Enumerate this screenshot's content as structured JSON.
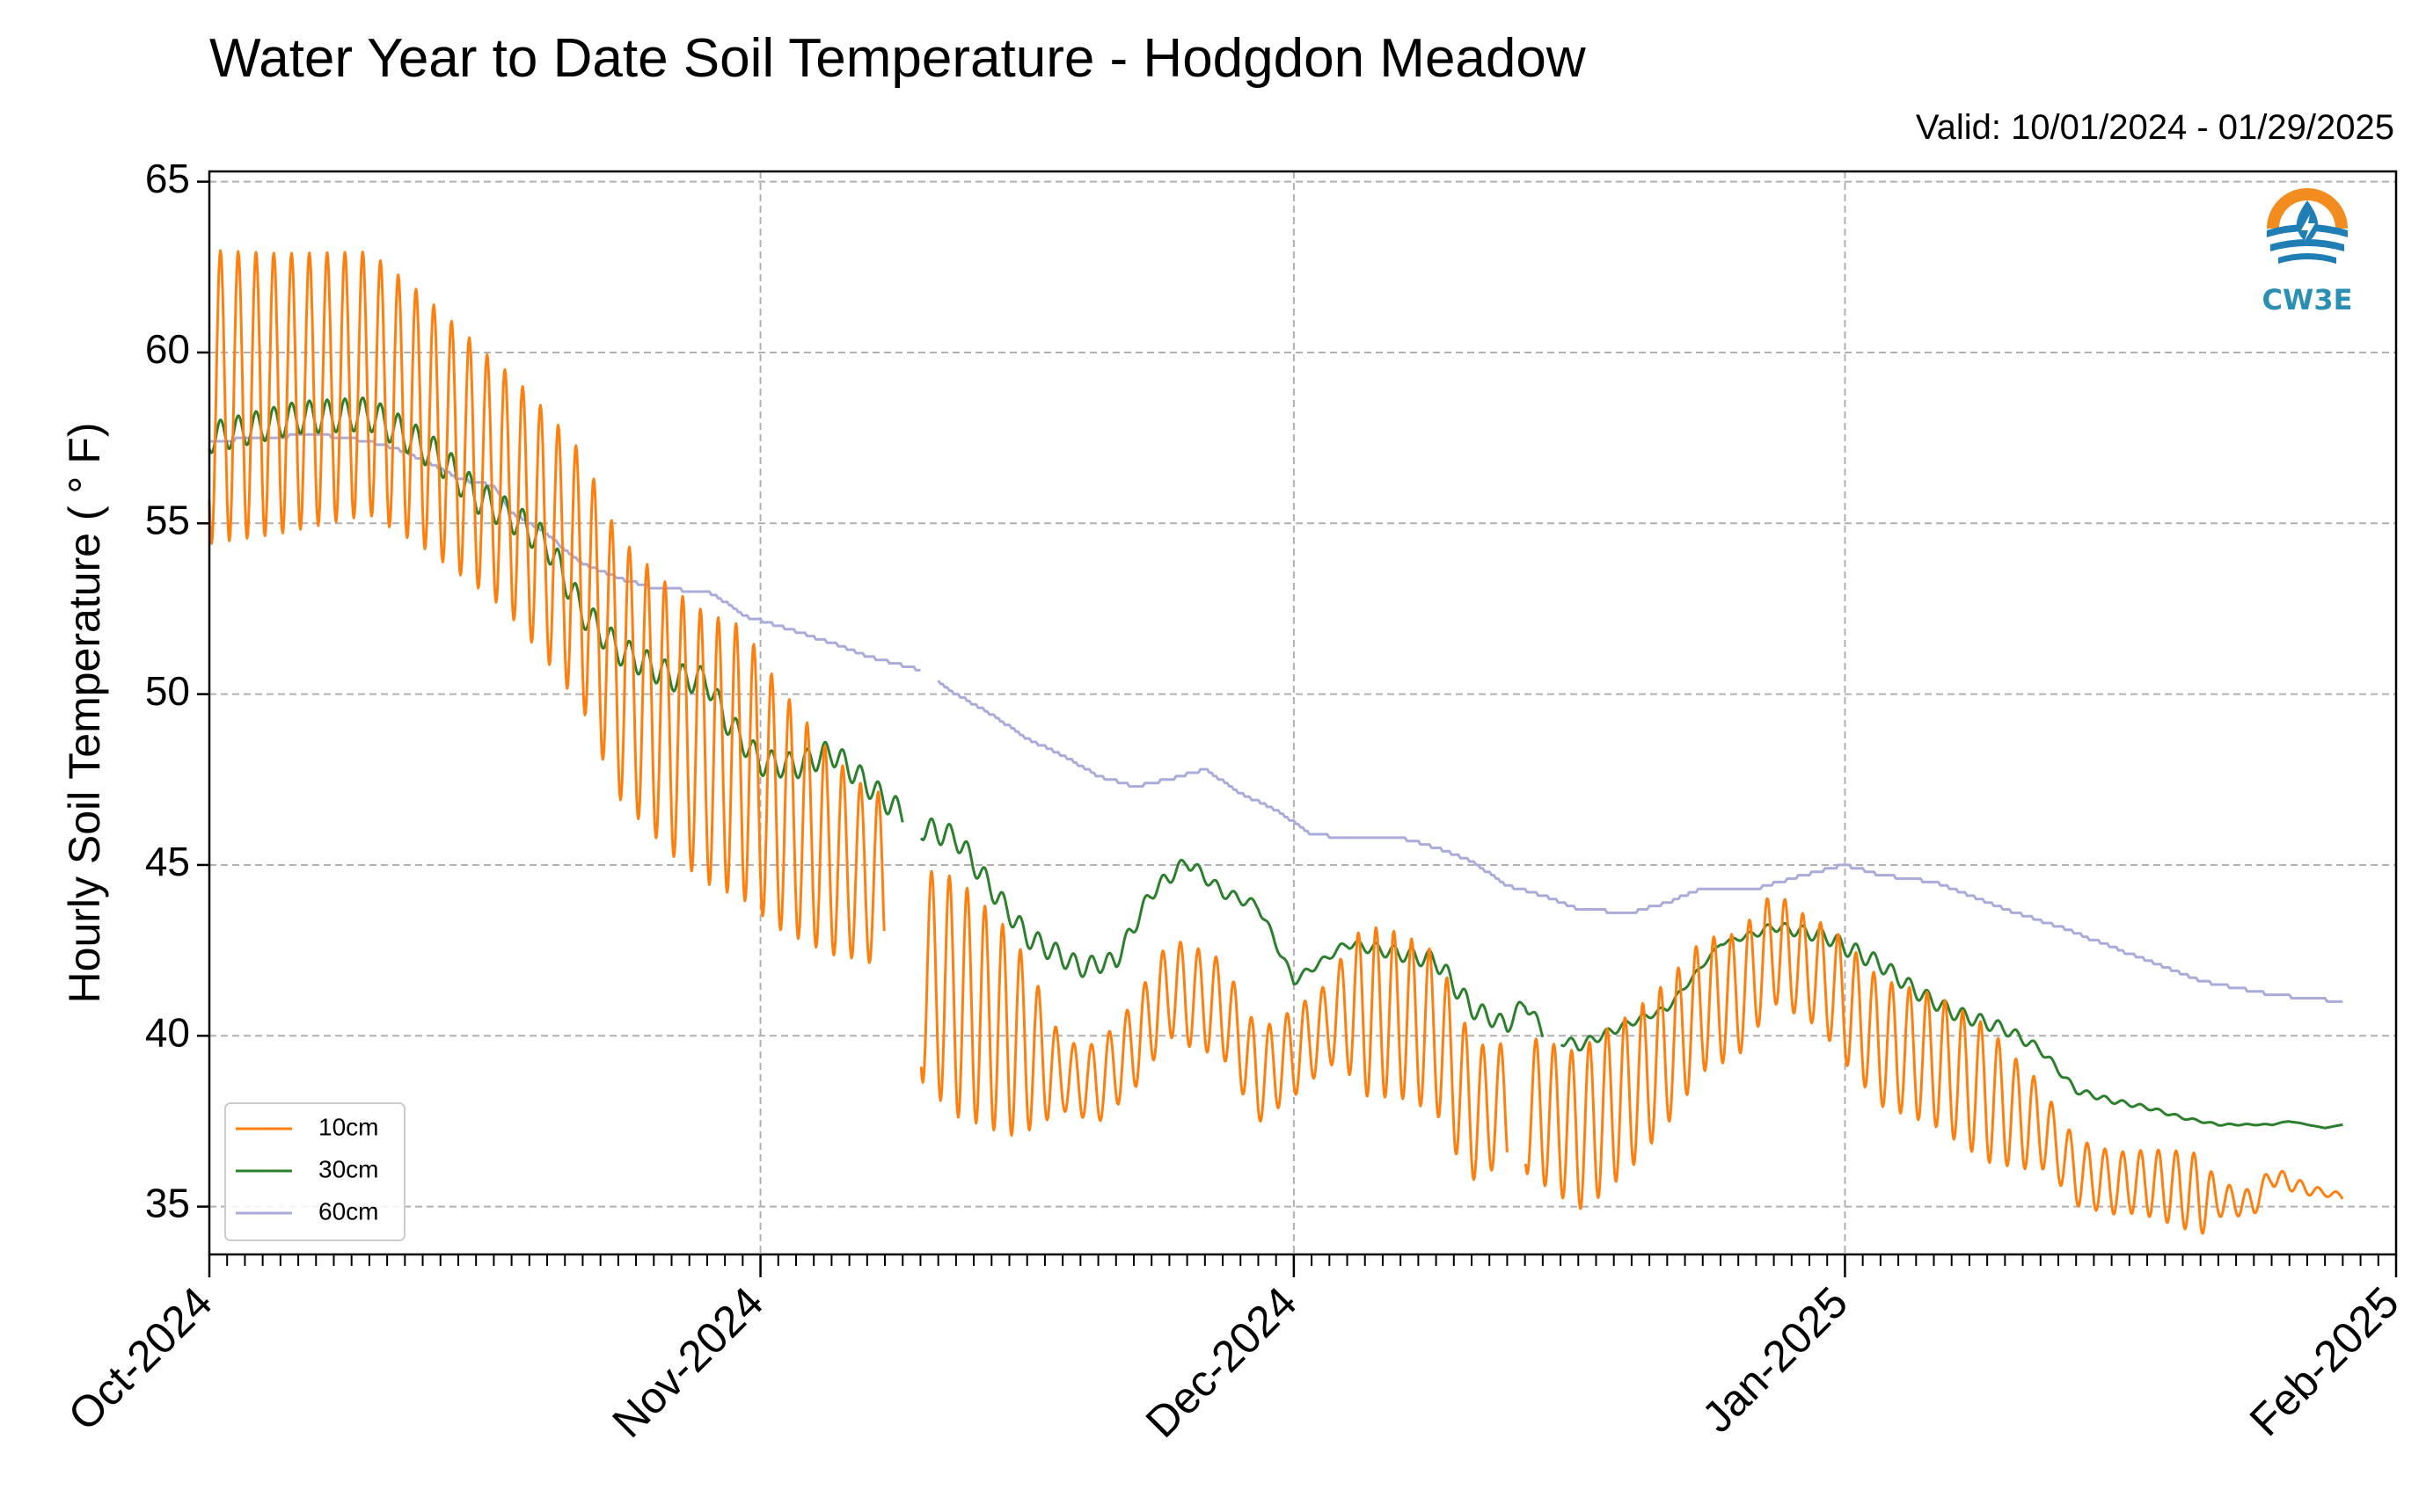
{
  "chart_data": {
    "type": "line",
    "title": "Water Year to Date Soil Temperature - Hodgdon Meadow",
    "subtitle": "Valid: 10/01/2024 - 01/29/2025",
    "ylabel": "Hourly Soil Temperature ( $^\\circ$F)",
    "ylabel_text": "Hourly Soil Temperature ( ° F)",
    "xlabel": "",
    "ylim": [
      33.6,
      65.3
    ],
    "xlim": [
      "2024-10-01",
      "2025-02-01"
    ],
    "yticks": [
      35,
      40,
      45,
      50,
      55,
      60,
      65
    ],
    "xticks": [
      {
        "date": "2024-10-01",
        "label": "Oct-2024"
      },
      {
        "date": "2024-11-01",
        "label": "Nov-2024"
      },
      {
        "date": "2024-12-01",
        "label": "Dec-2024"
      },
      {
        "date": "2025-01-01",
        "label": "Jan-2025"
      },
      {
        "date": "2025-02-01",
        "label": "Feb-2025"
      }
    ],
    "grid": true,
    "legend_position": "lower-left",
    "logo_text": "CW3E",
    "series": [
      {
        "name": "10cm",
        "color": "#ff7f0e",
        "diurnal_amplitude": [
          [
            0,
            4.3
          ],
          [
            16,
            3.5
          ],
          [
            22,
            3.8
          ],
          [
            30,
            4.0
          ],
          [
            37,
            2.5
          ],
          [
            42,
            3.5
          ],
          [
            45,
            3.0
          ],
          [
            46,
            2.5
          ],
          [
            48,
            1.0
          ],
          [
            55,
            1.5
          ],
          [
            63,
            1.2
          ],
          [
            65,
            2.5
          ],
          [
            70,
            2.3
          ],
          [
            72,
            1.8
          ],
          [
            78,
            2.4
          ],
          [
            90,
            1.5
          ],
          [
            92,
            1.8
          ],
          [
            100,
            2.0
          ],
          [
            104,
            1.0
          ],
          [
            108,
            0.9
          ],
          [
            112,
            1.2
          ],
          [
            113,
            0.5
          ],
          [
            119,
            0.1
          ]
        ],
        "points": [
          [
            "2024-10-01",
            58.7
          ],
          [
            "2024-10-05",
            58.8
          ],
          [
            "2024-10-10",
            59.1
          ],
          [
            "2024-10-13",
            58.0
          ],
          [
            "2024-10-16",
            56.7
          ],
          [
            "2024-10-18",
            55.8
          ],
          [
            "2024-10-20",
            54.6
          ],
          [
            "2024-10-22",
            53.3
          ],
          [
            "2024-10-24",
            50.8
          ],
          [
            "2024-10-27",
            49.2
          ],
          [
            "2024-10-29",
            48.4
          ],
          [
            "2024-10-31",
            48.0
          ],
          [
            "2024-11-02",
            46.7
          ],
          [
            "2024-11-05",
            45.3
          ],
          [
            "2024-11-08",
            44.4
          ],
          [
            "2024-11-10",
            41.8
          ],
          [
            "2024-11-13",
            40.8
          ],
          [
            "2024-11-16",
            39.7
          ],
          [
            "2024-11-18",
            38.8
          ],
          [
            "2024-11-20",
            38.6
          ],
          [
            "2024-11-22",
            39.7
          ],
          [
            "2024-11-24",
            41.4
          ],
          [
            "2024-11-27",
            40.8
          ],
          [
            "2024-11-29",
            38.8
          ],
          [
            "2024-12-01",
            39.5
          ],
          [
            "2024-12-04",
            40.8
          ],
          [
            "2024-12-07",
            40.6
          ],
          [
            "2024-12-09",
            40.1
          ],
          [
            "2024-12-11",
            37.8
          ],
          [
            "2024-12-14",
            38.0
          ],
          [
            "2024-12-16",
            37.5
          ],
          [
            "2024-12-17",
            37.2
          ],
          [
            "2024-12-20",
            38.4
          ],
          [
            "2024-12-22",
            39.5
          ],
          [
            "2024-12-24",
            40.9
          ],
          [
            "2024-12-26",
            41.2
          ],
          [
            "2024-12-28",
            42.6
          ],
          [
            "2024-12-31",
            41.6
          ],
          [
            "2025-01-01",
            41.0
          ],
          [
            "2025-01-03",
            39.8
          ],
          [
            "2025-01-06",
            39.3
          ],
          [
            "2025-01-09",
            38.3
          ],
          [
            "2025-01-11",
            37.6
          ],
          [
            "2025-01-12",
            37.4
          ],
          [
            "2025-01-14",
            36.0
          ],
          [
            "2025-01-16",
            35.7
          ],
          [
            "2025-01-18",
            35.7
          ],
          [
            "2025-01-20",
            35.5
          ],
          [
            "2025-01-22",
            35.2
          ],
          [
            "2025-01-24",
            35.1
          ],
          [
            "2025-01-25",
            35.9
          ],
          [
            "2025-01-27",
            35.5
          ],
          [
            "2025-01-29",
            35.3
          ]
        ],
        "gaps": [
          [
            "2024-11-08",
            "2024-11-10"
          ],
          [
            "2024-12-13",
            "2024-12-14"
          ]
        ]
      },
      {
        "name": "30cm",
        "color": "#2c7f2c",
        "diurnal_amplitude": [
          [
            0,
            0.45
          ],
          [
            12,
            0.5
          ],
          [
            27,
            0.4
          ],
          [
            40,
            0.35
          ],
          [
            48,
            0.3
          ],
          [
            58,
            0.15
          ],
          [
            63,
            0.1
          ],
          [
            70,
            0.3
          ],
          [
            77,
            0.15
          ],
          [
            85,
            0.05
          ],
          [
            92,
            0.25
          ],
          [
            100,
            0.2
          ],
          [
            104,
            0.1
          ],
          [
            112,
            0.03
          ],
          [
            119,
            0.0
          ]
        ],
        "points": [
          [
            "2024-10-01",
            57.5
          ],
          [
            "2024-10-06",
            58.1
          ],
          [
            "2024-10-10",
            58.2
          ],
          [
            "2024-10-12",
            57.6
          ],
          [
            "2024-10-14",
            56.9
          ],
          [
            "2024-10-16",
            55.8
          ],
          [
            "2024-10-18",
            55.2
          ],
          [
            "2024-10-20",
            54.4
          ],
          [
            "2024-10-22",
            52.4
          ],
          [
            "2024-10-24",
            51.3
          ],
          [
            "2024-10-27",
            50.5
          ],
          [
            "2024-10-29",
            50.4
          ],
          [
            "2024-10-30",
            49.3
          ],
          [
            "2024-11-01",
            48.0
          ],
          [
            "2024-11-03",
            47.9
          ],
          [
            "2024-11-05",
            48.3
          ],
          [
            "2024-11-08",
            46.9
          ],
          [
            "2024-11-10",
            46.1
          ],
          [
            "2024-11-12",
            45.8
          ],
          [
            "2024-11-14",
            44.3
          ],
          [
            "2024-11-16",
            42.9
          ],
          [
            "2024-11-18",
            42.3
          ],
          [
            "2024-11-19",
            42.0
          ],
          [
            "2024-11-21",
            42.2
          ],
          [
            "2024-11-23",
            44.2
          ],
          [
            "2024-11-25",
            45.1
          ],
          [
            "2024-11-27",
            44.2
          ],
          [
            "2024-11-29",
            43.8
          ],
          [
            "2024-12-01",
            41.6
          ],
          [
            "2024-12-04",
            42.7
          ],
          [
            "2024-12-07",
            42.4
          ],
          [
            "2024-12-09",
            42.2
          ],
          [
            "2024-12-11",
            40.8
          ],
          [
            "2024-12-13",
            40.3
          ],
          [
            "2024-12-14",
            41.0
          ],
          [
            "2024-12-15",
            40.1
          ],
          [
            "2024-12-17",
            39.7
          ],
          [
            "2024-12-20",
            40.4
          ],
          [
            "2024-12-22",
            40.8
          ],
          [
            "2024-12-25",
            42.7
          ],
          [
            "2024-12-27",
            43.0
          ],
          [
            "2024-12-28",
            43.2
          ],
          [
            "2024-12-31",
            42.9
          ],
          [
            "2025-01-01",
            42.6
          ],
          [
            "2025-01-03",
            42.1
          ],
          [
            "2025-01-05",
            41.3
          ],
          [
            "2025-01-07",
            40.7
          ],
          [
            "2025-01-10",
            40.2
          ],
          [
            "2025-01-12",
            39.6
          ],
          [
            "2025-01-14",
            38.4
          ],
          [
            "2025-01-16",
            38.1
          ],
          [
            "2025-01-18",
            37.9
          ],
          [
            "2025-01-20",
            37.6
          ],
          [
            "2025-01-22",
            37.4
          ],
          [
            "2025-01-25",
            37.4
          ],
          [
            "2025-01-26",
            37.5
          ],
          [
            "2025-01-28",
            37.3
          ],
          [
            "2025-01-29",
            37.4
          ]
        ],
        "gaps": [
          [
            "2024-11-09",
            "2024-11-10"
          ],
          [
            "2024-12-15",
            "2024-12-16"
          ]
        ]
      },
      {
        "name": "60cm",
        "color": "#a9acdb",
        "points": [
          [
            "2024-10-01",
            57.4
          ],
          [
            "2024-10-04",
            57.5
          ],
          [
            "2024-10-07",
            57.6
          ],
          [
            "2024-10-10",
            57.4
          ],
          [
            "2024-10-12",
            57.1
          ],
          [
            "2024-10-14",
            56.6
          ],
          [
            "2024-10-15",
            56.3
          ],
          [
            "2024-10-17",
            56.1
          ],
          [
            "2024-10-18",
            55.3
          ],
          [
            "2024-10-19",
            55.0
          ],
          [
            "2024-10-20",
            54.7
          ],
          [
            "2024-10-21",
            54.2
          ],
          [
            "2024-10-22",
            53.8
          ],
          [
            "2024-10-24",
            53.4
          ],
          [
            "2024-10-26",
            53.1
          ],
          [
            "2024-10-29",
            53.0
          ],
          [
            "2024-10-30",
            52.7
          ],
          [
            "2024-10-31",
            52.3
          ],
          [
            "2024-11-02",
            52.0
          ],
          [
            "2024-11-05",
            51.5
          ],
          [
            "2024-11-07",
            51.1
          ],
          [
            "2024-11-10",
            50.7
          ],
          [
            "2024-11-12",
            50.0
          ],
          [
            "2024-11-14",
            49.4
          ],
          [
            "2024-11-16",
            48.7
          ],
          [
            "2024-11-18",
            48.2
          ],
          [
            "2024-11-20",
            47.6
          ],
          [
            "2024-11-22",
            47.3
          ],
          [
            "2024-11-24",
            47.5
          ],
          [
            "2024-11-26",
            47.8
          ],
          [
            "2024-11-28",
            47.1
          ],
          [
            "2024-11-30",
            46.6
          ],
          [
            "2024-12-02",
            45.9
          ],
          [
            "2024-12-04",
            45.8
          ],
          [
            "2024-12-07",
            45.8
          ],
          [
            "2024-12-09",
            45.5
          ],
          [
            "2024-12-11",
            45.1
          ],
          [
            "2024-12-13",
            44.4
          ],
          [
            "2024-12-15",
            44.1
          ],
          [
            "2024-12-17",
            43.7
          ],
          [
            "2024-12-20",
            43.6
          ],
          [
            "2024-12-22",
            43.9
          ],
          [
            "2024-12-24",
            44.3
          ],
          [
            "2024-12-27",
            44.3
          ],
          [
            "2024-12-29",
            44.6
          ],
          [
            "2025-01-01",
            45.0
          ],
          [
            "2025-01-03",
            44.7
          ],
          [
            "2025-01-06",
            44.5
          ],
          [
            "2025-01-08",
            44.1
          ],
          [
            "2025-01-10",
            43.7
          ],
          [
            "2025-01-13",
            43.2
          ],
          [
            "2025-01-15",
            42.8
          ],
          [
            "2025-01-17",
            42.4
          ],
          [
            "2025-01-19",
            42.0
          ],
          [
            "2025-01-21",
            41.6
          ],
          [
            "2025-01-23",
            41.4
          ],
          [
            "2025-01-25",
            41.2
          ],
          [
            "2025-01-27",
            41.1
          ],
          [
            "2025-01-29",
            41.0
          ]
        ],
        "gaps": [
          [
            "2024-11-10",
            "2024-11-11"
          ]
        ]
      }
    ]
  }
}
